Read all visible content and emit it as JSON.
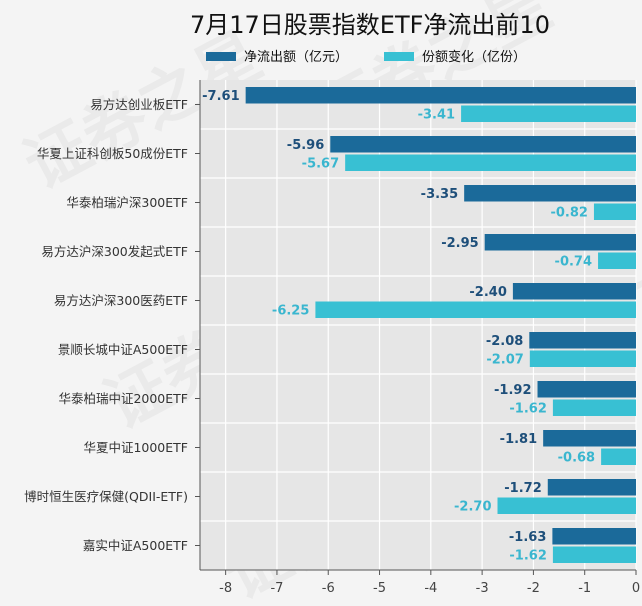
{
  "chart_data": {
    "type": "bar",
    "orientation": "horizontal",
    "title": "7月17日股票指数ETF净流出前10",
    "categories": [
      "易方达创业板ETF",
      "华夏上证科创板50成份ETF",
      "华泰柏瑞沪深300ETF",
      "易方达沪深300发起式ETF",
      "易方达沪深300医药ETF",
      "景顺长城中证A500ETF",
      "华泰柏瑞中证2000ETF",
      "华夏中证1000ETF",
      "博时恒生医疗保健(QDII-ETF)",
      "嘉实中证A500ETF"
    ],
    "series": [
      {
        "name": "净流出额（亿元）",
        "color": "#1b6a9a",
        "values": [
          -7.61,
          -5.96,
          -3.35,
          -2.95,
          -2.4,
          -2.08,
          -1.92,
          -1.81,
          -1.72,
          -1.63
        ],
        "labels": [
          "-7.61",
          "-5.96",
          "-3.35",
          "-2.95",
          "-2.40",
          "-2.08",
          "-1.92",
          "-1.81",
          "-1.72",
          "-1.63"
        ]
      },
      {
        "name": "份额变化（亿份）",
        "color": "#38c0d3",
        "values": [
          -3.41,
          -5.67,
          -0.82,
          -0.74,
          -6.25,
          -2.07,
          -1.62,
          -0.68,
          -2.7,
          -1.62
        ],
        "labels": [
          "-3.41",
          "-5.67",
          "-0.82",
          "-0.74",
          "-6.25",
          "-2.07",
          "-1.62",
          "-0.68",
          "-2.70",
          "-1.62"
        ]
      }
    ],
    "xlim": [
      -8.5,
      0
    ],
    "xticks": [
      -8,
      -7,
      -6,
      -5,
      -4,
      -3,
      -2,
      -1,
      0
    ],
    "xtick_labels": [
      "-8",
      "-7",
      "-6",
      "-5",
      "-4",
      "-3",
      "-2",
      "-1",
      "0"
    ],
    "grid": true,
    "legend_position": "top-center",
    "watermark": "证券之星"
  }
}
